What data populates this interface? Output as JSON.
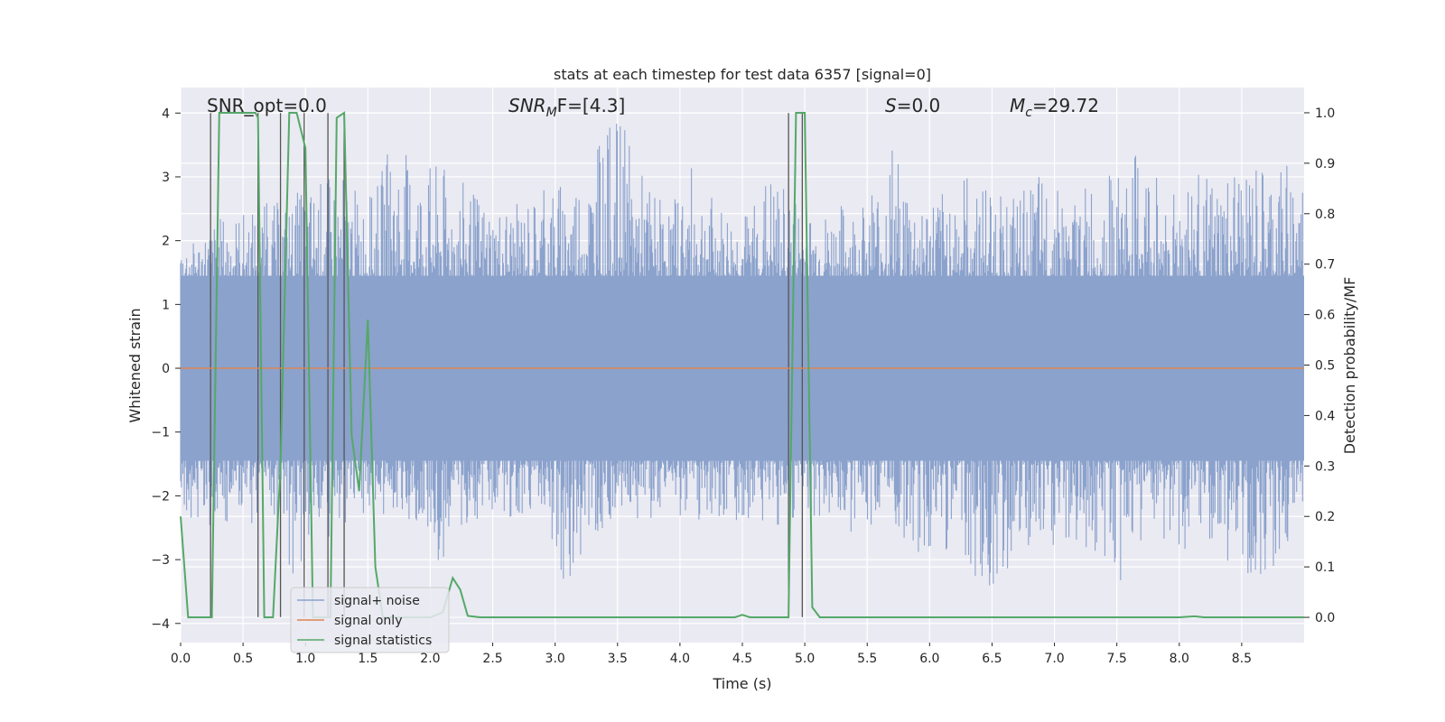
{
  "chart_data": {
    "type": "line",
    "title": "stats at each timestep for test data 6357 [signal=0]",
    "xlabel": "Time (s)",
    "ylabel": "Whitened strain",
    "y2label": "Detection probability/MF",
    "xlim": [
      0,
      9
    ],
    "ylim": [
      -4.3,
      4.4
    ],
    "y2lim": [
      -0.05,
      1.05
    ],
    "x_ticks": [
      0.0,
      0.5,
      1.0,
      1.5,
      2.0,
      2.5,
      3.0,
      3.5,
      4.0,
      4.5,
      5.0,
      5.5,
      6.0,
      6.5,
      7.0,
      7.5,
      8.0,
      8.5
    ],
    "y_ticks": [
      4,
      3,
      2,
      1,
      0,
      -1,
      -2,
      -3,
      -4
    ],
    "y2_ticks": [
      1.0,
      0.9,
      0.8,
      0.7,
      0.6,
      0.5,
      0.4,
      0.3,
      0.2,
      0.1,
      0.0
    ],
    "grid": true,
    "legend_position": "lower-left",
    "annotations": [
      {
        "text": "SNR_opt=0.0"
      },
      {
        "math": "SNR",
        "sub": "M",
        "rest": "F=[4.3]"
      },
      {
        "math": "S",
        "rest": "=0.0"
      },
      {
        "math": "M",
        "sub": "c",
        "rest": "=29.72"
      }
    ],
    "colors": {
      "noise": "#8ba2cc",
      "signal": "#dd8452",
      "stats": "#55a868",
      "vlines": "#555555",
      "plot_bg": "#eaeaf2",
      "grid": "#ffffff"
    },
    "series": [
      {
        "name": "signal+ noise",
        "color": "#8ba2cc",
        "envelope": [
          [
            0.1,
            -2.6,
            2.0
          ],
          [
            0.3,
            -2.4,
            2.4
          ],
          [
            0.5,
            -2.5,
            2.5
          ],
          [
            0.7,
            -2.4,
            2.6
          ],
          [
            0.9,
            -3.4,
            2.7
          ],
          [
            1.1,
            -2.8,
            3.0
          ],
          [
            1.3,
            -2.7,
            3.1
          ],
          [
            1.5,
            -2.4,
            2.6
          ],
          [
            1.7,
            -2.3,
            3.6
          ],
          [
            1.9,
            -2.4,
            3.3
          ],
          [
            2.1,
            -3.2,
            3.2
          ],
          [
            2.3,
            -2.4,
            2.9
          ],
          [
            2.5,
            -2.3,
            2.6
          ],
          [
            2.7,
            -2.4,
            2.6
          ],
          [
            2.9,
            -2.3,
            2.8
          ],
          [
            3.1,
            -3.7,
            3.1
          ],
          [
            3.3,
            -2.6,
            3.3
          ],
          [
            3.5,
            -2.4,
            4.0
          ],
          [
            3.7,
            -2.4,
            3.1
          ],
          [
            3.9,
            -2.3,
            2.6
          ],
          [
            4.1,
            -2.4,
            3.2
          ],
          [
            4.3,
            -2.5,
            2.6
          ],
          [
            4.5,
            -2.4,
            2.4
          ],
          [
            4.7,
            -2.5,
            3.1
          ],
          [
            4.9,
            -2.4,
            2.8
          ],
          [
            5.1,
            -2.3,
            2.4
          ],
          [
            5.3,
            -2.6,
            2.6
          ],
          [
            5.5,
            -2.5,
            2.5
          ],
          [
            5.7,
            -2.6,
            3.6
          ],
          [
            5.9,
            -2.9,
            2.7
          ],
          [
            6.1,
            -2.8,
            2.8
          ],
          [
            6.3,
            -3.2,
            3.1
          ],
          [
            6.5,
            -3.5,
            3.0
          ],
          [
            6.7,
            -3.0,
            2.7
          ],
          [
            6.9,
            -2.9,
            3.1
          ],
          [
            7.1,
            -2.7,
            2.6
          ],
          [
            7.3,
            -2.9,
            3.0
          ],
          [
            7.5,
            -3.5,
            3.1
          ],
          [
            7.7,
            -2.8,
            3.5
          ],
          [
            7.9,
            -2.7,
            2.9
          ],
          [
            8.1,
            -3.0,
            3.2
          ],
          [
            8.3,
            -2.9,
            2.9
          ],
          [
            8.5,
            -3.2,
            3.2
          ],
          [
            8.7,
            -3.3,
            3.1
          ],
          [
            8.9,
            -2.7,
            3.2
          ]
        ]
      },
      {
        "name": "signal only",
        "color": "#dd8452",
        "x": [
          0,
          9
        ],
        "y": [
          0,
          0
        ]
      },
      {
        "name": "signal statistics",
        "color": "#55a868",
        "x": [
          0.0,
          0.06,
          0.25,
          0.31,
          0.6,
          0.62,
          0.67,
          0.74,
          0.8,
          0.87,
          0.93,
          1.0,
          1.06,
          1.15,
          1.2,
          1.25,
          1.31,
          1.37,
          1.43,
          1.5,
          1.56,
          1.62,
          1.7,
          1.8,
          2.0,
          2.1,
          2.18,
          2.24,
          2.3,
          2.4,
          2.5,
          3.0,
          3.5,
          4.0,
          4.44,
          4.5,
          4.56,
          4.62,
          4.8,
          4.87,
          4.93,
          5.0,
          5.06,
          5.12,
          5.3,
          6.0,
          7.0,
          8.0,
          8.12,
          8.2,
          9.0
        ],
        "y": [
          0.2,
          0.0,
          0.0,
          1.0,
          1.0,
          0.99,
          0.0,
          0.0,
          0.3,
          1.0,
          1.0,
          0.93,
          0.0,
          0.0,
          0.0,
          0.99,
          1.0,
          0.36,
          0.25,
          0.59,
          0.1,
          0.0,
          0.0,
          0.0,
          0.0,
          0.01,
          0.078,
          0.055,
          0.003,
          0.0,
          0.0,
          0.0,
          0.0,
          0.0,
          0.0,
          0.005,
          0.0,
          0.0,
          0.0,
          0.0,
          1.0,
          1.0,
          0.02,
          0.0,
          0.0,
          0.0,
          0.0,
          0.0,
          0.002,
          0.0,
          0.0
        ]
      }
    ],
    "vlines_x": [
      0.24,
      0.62,
      0.8,
      0.99,
      1.18,
      1.31,
      4.87,
      4.98
    ],
    "legend": [
      "signal+ noise",
      "signal only",
      "signal statistics"
    ]
  }
}
